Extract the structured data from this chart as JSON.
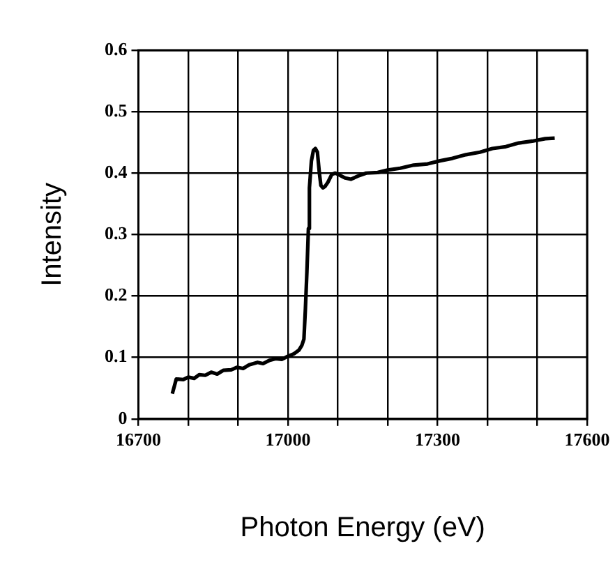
{
  "chart_data": {
    "type": "line",
    "xlabel": "Photon Energy (eV)",
    "ylabel": "Intensity",
    "x": [
      16768,
      16776,
      16790,
      16800,
      16812,
      16822,
      16834,
      16846,
      16858,
      16870,
      16886,
      16898,
      16910,
      16922,
      16939,
      16950,
      16962,
      16975,
      16988,
      17000,
      17012,
      17022,
      17028,
      17032,
      17035,
      17038,
      17041,
      17043,
      17047,
      17051,
      17055,
      17059,
      17063,
      17066,
      17070,
      17074,
      17080,
      17088,
      17095,
      17105,
      17115,
      17126,
      17140,
      17157,
      17180,
      17200,
      17225,
      17252,
      17280,
      17305,
      17330,
      17357,
      17385,
      17410,
      17437,
      17463,
      17490,
      17516,
      17535
    ],
    "series": [
      {
        "color": "#000000",
        "values": [
          0.041,
          0.065,
          0.064,
          0.068,
          0.066,
          0.072,
          0.071,
          0.076,
          0.073,
          0.079,
          0.08,
          0.084,
          0.082,
          0.088,
          0.092,
          0.09,
          0.095,
          0.098,
          0.097,
          0.102,
          0.106,
          0.112,
          0.12,
          0.13,
          0.18,
          0.24,
          0.31,
          0.376,
          0.42,
          0.437,
          0.44,
          0.434,
          0.4,
          0.38,
          0.376,
          0.378,
          0.385,
          0.398,
          0.4,
          0.396,
          0.392,
          0.39,
          0.395,
          0.4,
          0.401,
          0.405,
          0.408,
          0.413,
          0.415,
          0.42,
          0.424,
          0.43,
          0.434,
          0.44,
          0.443,
          0.449,
          0.452,
          0.456,
          0.457
        ]
      }
    ],
    "xlim": [
      16700,
      17600
    ],
    "xticks": [
      16700,
      {
        "value": 16800,
        "label": null
      },
      {
        "value": 16900,
        "label": null
      },
      17000,
      {
        "value": 17100,
        "label": null
      },
      {
        "value": 17200,
        "label": null
      },
      17300,
      {
        "value": 17400,
        "label": null
      },
      {
        "value": 17500,
        "label": null
      },
      17600
    ],
    "ylim": [
      0,
      0.6
    ],
    "yticks": [
      0,
      0.1,
      0.2,
      0.3,
      0.4,
      0.5,
      0.6
    ],
    "grid": true,
    "legend": false,
    "marker": "none",
    "line_style": "solid"
  }
}
